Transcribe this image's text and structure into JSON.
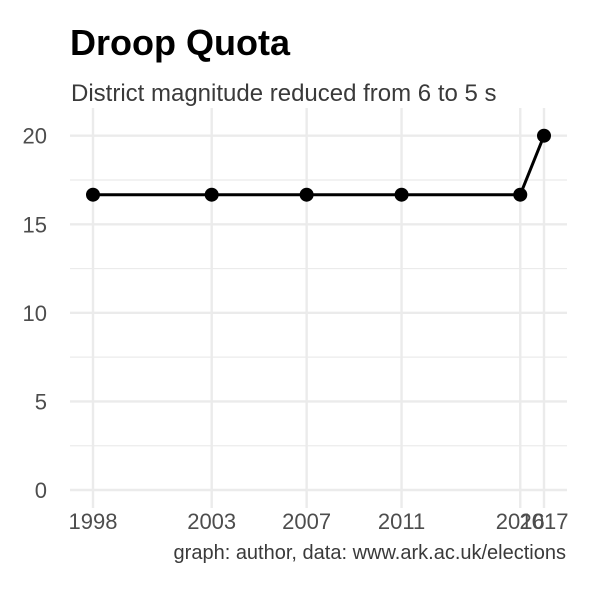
{
  "chart_data": {
    "type": "line",
    "title": "Droop Quota",
    "subtitle": "District magnitude reduced from 6 to 5 s",
    "caption": "graph: author, data: www.ark.ac.uk/elections",
    "xlabel": "",
    "ylabel": "",
    "x": [
      1998,
      2003,
      2007,
      2011,
      2016,
      2017
    ],
    "x_tick_labels": [
      "1998",
      "2003",
      "2007",
      "2011",
      "2016",
      "2017"
    ],
    "series": [
      {
        "values": [
          16.67,
          16.67,
          16.67,
          16.67,
          16.67,
          20
        ]
      }
    ],
    "xlim": [
      1998,
      2017
    ],
    "ylim": [
      0,
      21
    ],
    "y_ticks": [
      0,
      5,
      10,
      15,
      20
    ],
    "grid": true,
    "colors": {
      "line": "#000000",
      "grid": "#ebebeb",
      "text": "#4d4d4d"
    }
  }
}
